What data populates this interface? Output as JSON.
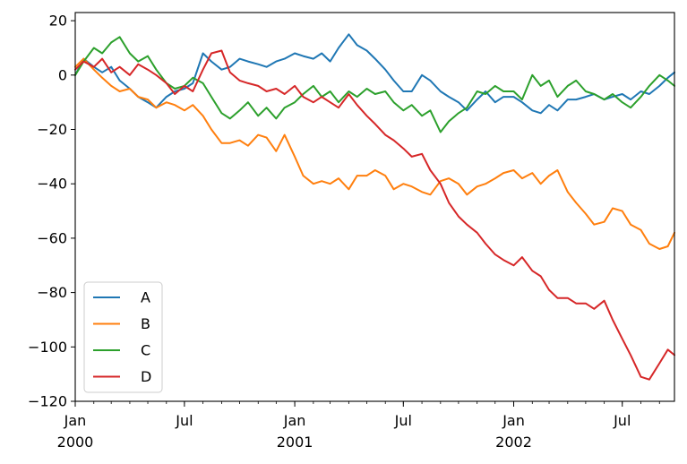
{
  "chart_data": {
    "type": "line",
    "title": "",
    "xlabel": "",
    "ylabel": "",
    "x_range": [
      "2000-01-01",
      "2002-09-26"
    ],
    "ylim": [
      -120,
      23
    ],
    "y_ticks": [
      20,
      0,
      -20,
      -40,
      -60,
      -80,
      -100,
      -120
    ],
    "x_ticks": [
      {
        "date": "2000-01-01",
        "label": "Jan",
        "sublabel": "2000"
      },
      {
        "date": "2000-07-01",
        "label": "Jul",
        "sublabel": ""
      },
      {
        "date": "2001-01-01",
        "label": "Jan",
        "sublabel": "2001"
      },
      {
        "date": "2001-07-01",
        "label": "Jul",
        "sublabel": ""
      },
      {
        "date": "2002-01-01",
        "label": "Jan",
        "sublabel": "2002"
      },
      {
        "date": "2002-07-01",
        "label": "Jul",
        "sublabel": ""
      }
    ],
    "legend_position": "lower-left",
    "grid": false,
    "series": [
      {
        "name": "A",
        "color": "#1f77b4",
        "points": [
          [
            "2000-01-01",
            0
          ],
          [
            "2000-01-15",
            6
          ],
          [
            "2000-02-01",
            3
          ],
          [
            "2000-02-15",
            1
          ],
          [
            "2000-03-01",
            3
          ],
          [
            "2000-03-15",
            -2
          ],
          [
            "2000-04-01",
            -5
          ],
          [
            "2000-04-15",
            -8
          ],
          [
            "2000-05-01",
            -10
          ],
          [
            "2000-05-15",
            -12
          ],
          [
            "2000-06-01",
            -8
          ],
          [
            "2000-06-15",
            -6
          ],
          [
            "2000-07-01",
            -5
          ],
          [
            "2000-07-15",
            -3
          ],
          [
            "2000-08-01",
            8
          ],
          [
            "2000-08-15",
            5
          ],
          [
            "2000-09-01",
            2
          ],
          [
            "2000-09-15",
            3
          ],
          [
            "2000-10-01",
            6
          ],
          [
            "2000-10-15",
            5
          ],
          [
            "2000-11-01",
            4
          ],
          [
            "2000-11-15",
            3
          ],
          [
            "2000-12-01",
            5
          ],
          [
            "2000-12-15",
            6
          ],
          [
            "2001-01-01",
            8
          ],
          [
            "2001-01-15",
            7
          ],
          [
            "2001-02-01",
            6
          ],
          [
            "2001-02-15",
            8
          ],
          [
            "2001-03-01",
            5
          ],
          [
            "2001-03-15",
            10
          ],
          [
            "2001-04-01",
            15
          ],
          [
            "2001-04-15",
            11
          ],
          [
            "2001-05-01",
            9
          ],
          [
            "2001-05-15",
            6
          ],
          [
            "2001-06-01",
            2
          ],
          [
            "2001-06-15",
            -2
          ],
          [
            "2001-07-01",
            -6
          ],
          [
            "2001-07-15",
            -6
          ],
          [
            "2001-08-01",
            0
          ],
          [
            "2001-08-15",
            -2
          ],
          [
            "2001-09-01",
            -6
          ],
          [
            "2001-09-15",
            -8
          ],
          [
            "2001-10-01",
            -10
          ],
          [
            "2001-10-15",
            -13
          ],
          [
            "2001-11-01",
            -9
          ],
          [
            "2001-11-15",
            -6
          ],
          [
            "2001-12-01",
            -10
          ],
          [
            "2001-12-15",
            -8
          ],
          [
            "2002-01-01",
            -8
          ],
          [
            "2002-01-15",
            -10
          ],
          [
            "2002-02-01",
            -13
          ],
          [
            "2002-02-15",
            -14
          ],
          [
            "2002-03-01",
            -11
          ],
          [
            "2002-03-15",
            -13
          ],
          [
            "2002-04-01",
            -9
          ],
          [
            "2002-04-15",
            -9
          ],
          [
            "2002-05-01",
            -8
          ],
          [
            "2002-05-15",
            -7
          ],
          [
            "2002-06-01",
            -9
          ],
          [
            "2002-06-15",
            -8
          ],
          [
            "2002-07-01",
            -7
          ],
          [
            "2002-07-15",
            -9
          ],
          [
            "2002-08-01",
            -6
          ],
          [
            "2002-08-15",
            -7
          ],
          [
            "2002-09-01",
            -4
          ],
          [
            "2002-09-15",
            -1
          ],
          [
            "2002-09-26",
            1
          ]
        ]
      },
      {
        "name": "B",
        "color": "#ff7f0e",
        "points": [
          [
            "2000-01-01",
            3
          ],
          [
            "2000-01-15",
            6
          ],
          [
            "2000-02-01",
            2
          ],
          [
            "2000-02-15",
            -1
          ],
          [
            "2000-03-01",
            -4
          ],
          [
            "2000-03-15",
            -6
          ],
          [
            "2000-04-01",
            -5
          ],
          [
            "2000-04-15",
            -8
          ],
          [
            "2000-05-01",
            -9
          ],
          [
            "2000-05-15",
            -12
          ],
          [
            "2000-06-01",
            -10
          ],
          [
            "2000-06-15",
            -11
          ],
          [
            "2000-07-01",
            -13
          ],
          [
            "2000-07-15",
            -11
          ],
          [
            "2000-08-01",
            -15
          ],
          [
            "2000-08-15",
            -20
          ],
          [
            "2000-09-01",
            -25
          ],
          [
            "2000-09-15",
            -25
          ],
          [
            "2000-10-01",
            -24
          ],
          [
            "2000-10-15",
            -26
          ],
          [
            "2000-11-01",
            -22
          ],
          [
            "2000-11-15",
            -23
          ],
          [
            "2000-12-01",
            -28
          ],
          [
            "2000-12-15",
            -22
          ],
          [
            "2001-01-01",
            -30
          ],
          [
            "2001-01-15",
            -37
          ],
          [
            "2001-02-01",
            -40
          ],
          [
            "2001-02-15",
            -39
          ],
          [
            "2001-03-01",
            -40
          ],
          [
            "2001-03-15",
            -38
          ],
          [
            "2001-04-01",
            -42
          ],
          [
            "2001-04-15",
            -37
          ],
          [
            "2001-05-01",
            -37
          ],
          [
            "2001-05-15",
            -35
          ],
          [
            "2001-06-01",
            -37
          ],
          [
            "2001-06-15",
            -42
          ],
          [
            "2001-07-01",
            -40
          ],
          [
            "2001-07-15",
            -41
          ],
          [
            "2001-08-01",
            -43
          ],
          [
            "2001-08-15",
            -44
          ],
          [
            "2001-09-01",
            -39
          ],
          [
            "2001-09-15",
            -38
          ],
          [
            "2001-10-01",
            -40
          ],
          [
            "2001-10-15",
            -44
          ],
          [
            "2001-11-01",
            -41
          ],
          [
            "2001-11-15",
            -40
          ],
          [
            "2001-12-01",
            -38
          ],
          [
            "2001-12-15",
            -36
          ],
          [
            "2002-01-01",
            -35
          ],
          [
            "2002-01-15",
            -38
          ],
          [
            "2002-02-01",
            -36
          ],
          [
            "2002-02-15",
            -40
          ],
          [
            "2002-03-01",
            -37
          ],
          [
            "2002-03-15",
            -35
          ],
          [
            "2002-04-01",
            -43
          ],
          [
            "2002-04-15",
            -47
          ],
          [
            "2002-05-01",
            -51
          ],
          [
            "2002-05-15",
            -55
          ],
          [
            "2002-06-01",
            -54
          ],
          [
            "2002-06-15",
            -49
          ],
          [
            "2002-07-01",
            -50
          ],
          [
            "2002-07-15",
            -55
          ],
          [
            "2002-08-01",
            -57
          ],
          [
            "2002-08-15",
            -62
          ],
          [
            "2002-09-01",
            -64
          ],
          [
            "2002-09-15",
            -63
          ],
          [
            "2002-09-26",
            -58
          ]
        ]
      },
      {
        "name": "C",
        "color": "#2ca02c",
        "points": [
          [
            "2000-01-01",
            0
          ],
          [
            "2000-01-15",
            5
          ],
          [
            "2000-02-01",
            10
          ],
          [
            "2000-02-15",
            8
          ],
          [
            "2000-03-01",
            12
          ],
          [
            "2000-03-15",
            14
          ],
          [
            "2000-04-01",
            8
          ],
          [
            "2000-04-15",
            5
          ],
          [
            "2000-05-01",
            7
          ],
          [
            "2000-05-15",
            2
          ],
          [
            "2000-06-01",
            -3
          ],
          [
            "2000-06-15",
            -5
          ],
          [
            "2000-07-01",
            -4
          ],
          [
            "2000-07-15",
            -1
          ],
          [
            "2000-08-01",
            -3
          ],
          [
            "2000-08-15",
            -8
          ],
          [
            "2000-09-01",
            -14
          ],
          [
            "2000-09-15",
            -16
          ],
          [
            "2000-10-01",
            -13
          ],
          [
            "2000-10-15",
            -10
          ],
          [
            "2000-11-01",
            -15
          ],
          [
            "2000-11-15",
            -12
          ],
          [
            "2000-12-01",
            -16
          ],
          [
            "2000-12-15",
            -12
          ],
          [
            "2001-01-01",
            -10
          ],
          [
            "2001-01-15",
            -7
          ],
          [
            "2001-02-01",
            -4
          ],
          [
            "2001-02-15",
            -8
          ],
          [
            "2001-03-01",
            -6
          ],
          [
            "2001-03-15",
            -10
          ],
          [
            "2001-04-01",
            -6
          ],
          [
            "2001-04-15",
            -8
          ],
          [
            "2001-05-01",
            -5
          ],
          [
            "2001-05-15",
            -7
          ],
          [
            "2001-06-01",
            -6
          ],
          [
            "2001-06-15",
            -10
          ],
          [
            "2001-07-01",
            -13
          ],
          [
            "2001-07-15",
            -11
          ],
          [
            "2001-08-01",
            -15
          ],
          [
            "2001-08-15",
            -13
          ],
          [
            "2001-09-01",
            -21
          ],
          [
            "2001-09-15",
            -17
          ],
          [
            "2001-10-01",
            -14
          ],
          [
            "2001-10-15",
            -12
          ],
          [
            "2001-11-01",
            -6
          ],
          [
            "2001-11-15",
            -7
          ],
          [
            "2001-12-01",
            -4
          ],
          [
            "2001-12-15",
            -6
          ],
          [
            "2002-01-01",
            -6
          ],
          [
            "2002-01-15",
            -9
          ],
          [
            "2002-02-01",
            0
          ],
          [
            "2002-02-15",
            -4
          ],
          [
            "2002-03-01",
            -2
          ],
          [
            "2002-03-15",
            -8
          ],
          [
            "2002-04-01",
            -4
          ],
          [
            "2002-04-15",
            -2
          ],
          [
            "2002-05-01",
            -6
          ],
          [
            "2002-05-15",
            -7
          ],
          [
            "2002-06-01",
            -9
          ],
          [
            "2002-06-15",
            -7
          ],
          [
            "2002-07-01",
            -10
          ],
          [
            "2002-07-15",
            -12
          ],
          [
            "2002-08-01",
            -8
          ],
          [
            "2002-08-15",
            -4
          ],
          [
            "2002-09-01",
            0
          ],
          [
            "2002-09-15",
            -2
          ],
          [
            "2002-09-26",
            -4
          ]
        ]
      },
      {
        "name": "D",
        "color": "#d62728",
        "points": [
          [
            "2000-01-01",
            2
          ],
          [
            "2000-01-15",
            5
          ],
          [
            "2000-02-01",
            3
          ],
          [
            "2000-02-15",
            6
          ],
          [
            "2000-03-01",
            1
          ],
          [
            "2000-03-15",
            3
          ],
          [
            "2000-04-01",
            0
          ],
          [
            "2000-04-15",
            4
          ],
          [
            "2000-05-01",
            2
          ],
          [
            "2000-05-15",
            0
          ],
          [
            "2000-06-01",
            -3
          ],
          [
            "2000-06-15",
            -7
          ],
          [
            "2000-07-01",
            -4
          ],
          [
            "2000-07-15",
            -6
          ],
          [
            "2000-08-01",
            2
          ],
          [
            "2000-08-15",
            8
          ],
          [
            "2000-09-01",
            9
          ],
          [
            "2000-09-15",
            1
          ],
          [
            "2000-10-01",
            -2
          ],
          [
            "2000-10-15",
            -3
          ],
          [
            "2000-11-01",
            -4
          ],
          [
            "2000-11-15",
            -6
          ],
          [
            "2000-12-01",
            -5
          ],
          [
            "2000-12-15",
            -7
          ],
          [
            "2001-01-01",
            -4
          ],
          [
            "2001-01-15",
            -8
          ],
          [
            "2001-02-01",
            -10
          ],
          [
            "2001-02-15",
            -8
          ],
          [
            "2001-03-01",
            -10
          ],
          [
            "2001-03-15",
            -12
          ],
          [
            "2001-04-01",
            -7
          ],
          [
            "2001-04-15",
            -11
          ],
          [
            "2001-05-01",
            -15
          ],
          [
            "2001-05-15",
            -18
          ],
          [
            "2001-06-01",
            -22
          ],
          [
            "2001-06-15",
            -24
          ],
          [
            "2001-07-01",
            -27
          ],
          [
            "2001-07-15",
            -30
          ],
          [
            "2001-08-01",
            -29
          ],
          [
            "2001-08-15",
            -35
          ],
          [
            "2001-09-01",
            -40
          ],
          [
            "2001-09-15",
            -47
          ],
          [
            "2001-10-01",
            -52
          ],
          [
            "2001-10-15",
            -55
          ],
          [
            "2001-11-01",
            -58
          ],
          [
            "2001-11-15",
            -62
          ],
          [
            "2001-12-01",
            -66
          ],
          [
            "2001-12-15",
            -68
          ],
          [
            "2002-01-01",
            -70
          ],
          [
            "2002-01-15",
            -67
          ],
          [
            "2002-02-01",
            -72
          ],
          [
            "2002-02-15",
            -74
          ],
          [
            "2002-03-01",
            -79
          ],
          [
            "2002-03-15",
            -82
          ],
          [
            "2002-04-01",
            -82
          ],
          [
            "2002-04-15",
            -84
          ],
          [
            "2002-05-01",
            -84
          ],
          [
            "2002-05-15",
            -86
          ],
          [
            "2002-06-01",
            -83
          ],
          [
            "2002-06-15",
            -90
          ],
          [
            "2002-07-01",
            -97
          ],
          [
            "2002-07-15",
            -103
          ],
          [
            "2002-08-01",
            -111
          ],
          [
            "2002-08-15",
            -112
          ],
          [
            "2002-09-01",
            -106
          ],
          [
            "2002-09-15",
            -101
          ],
          [
            "2002-09-26",
            -103
          ]
        ]
      }
    ]
  }
}
